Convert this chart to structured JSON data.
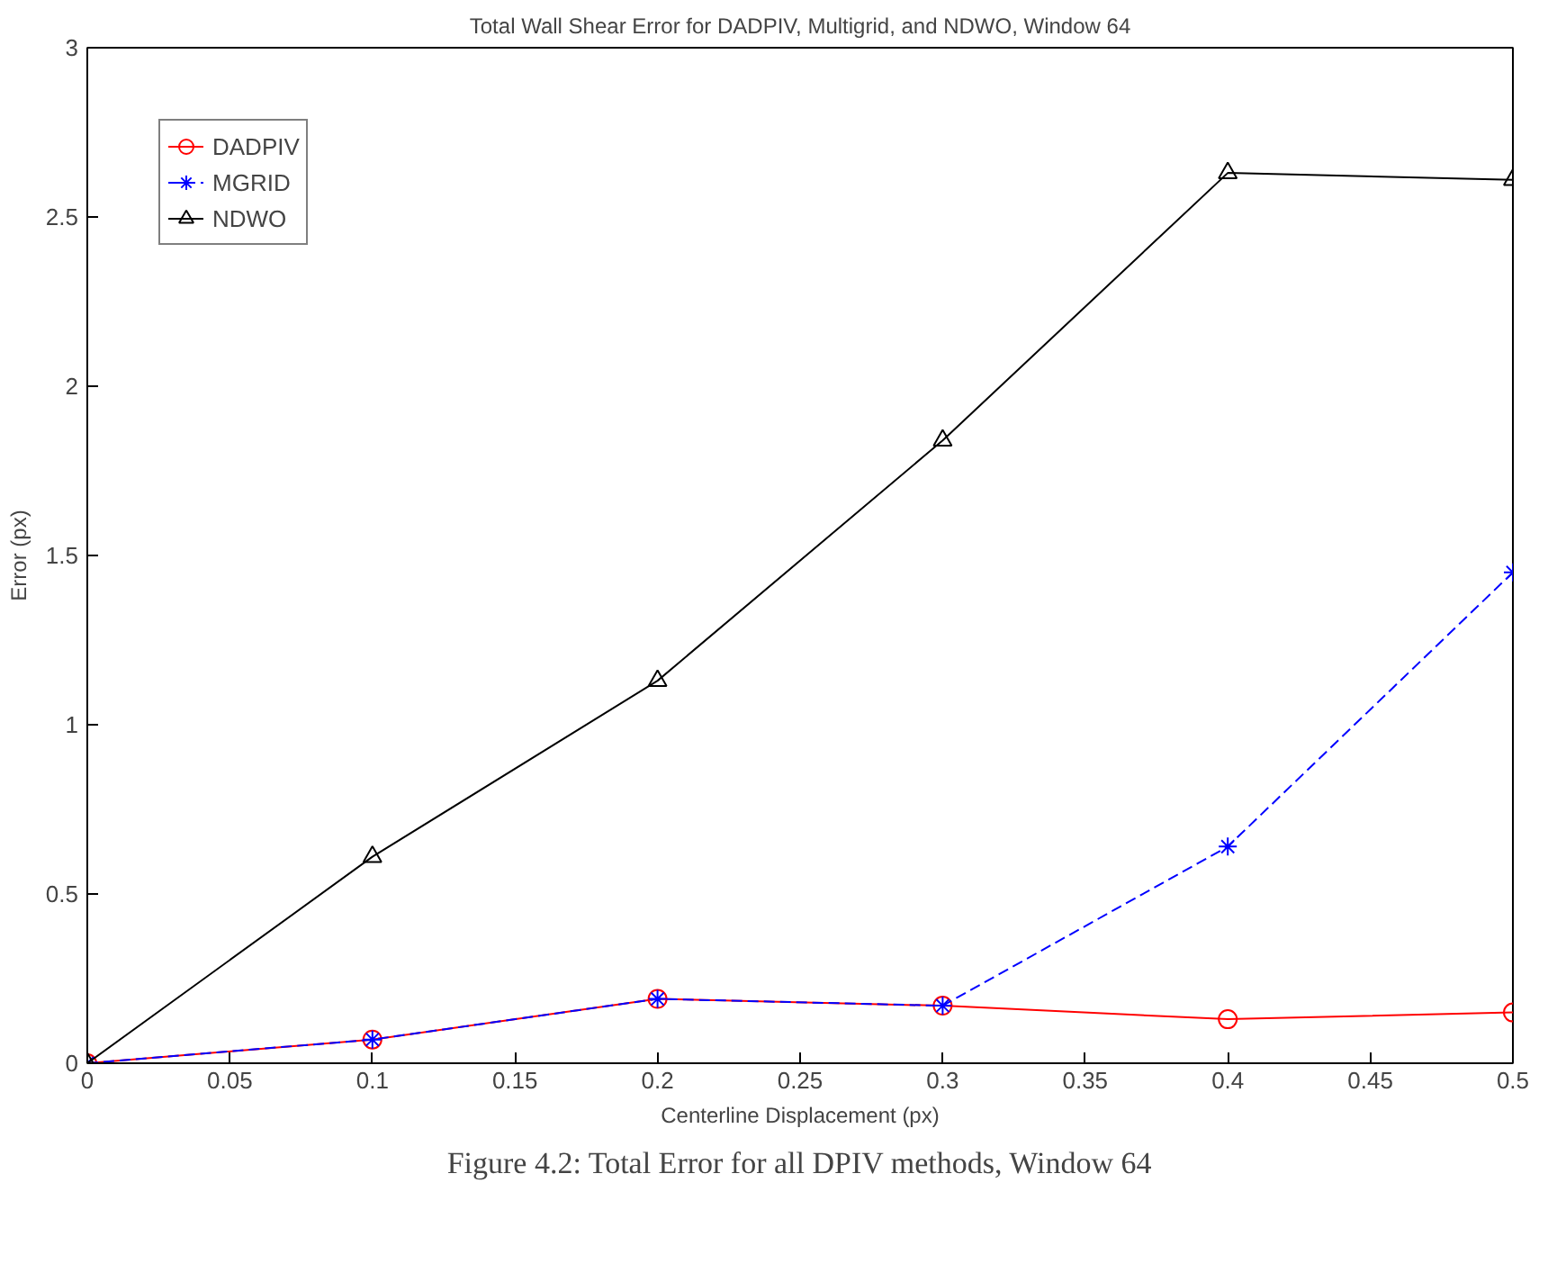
{
  "chart_data": {
    "type": "line",
    "title": "Total Wall Shear Error for DADPIV, Multigrid, and NDWO, Window 64",
    "xlabel": "Centerline Displacement (px)",
    "ylabel": "Error (px)",
    "x": [
      0,
      0.1,
      0.2,
      0.3,
      0.4,
      0.5
    ],
    "series": [
      {
        "name": "DADPIV",
        "color": "#ff0000",
        "marker": "circle",
        "line_style": "solid",
        "values": [
          0,
          0.07,
          0.19,
          0.17,
          0.13,
          0.15
        ]
      },
      {
        "name": "MGRID",
        "color": "#0000ff",
        "marker": "cross",
        "line_style": "dashed",
        "values": [
          0,
          0.07,
          0.19,
          0.17,
          0.64,
          1.45
        ]
      },
      {
        "name": "NDWO",
        "color": "#000000",
        "marker": "triangle",
        "line_style": "solid",
        "values": [
          0,
          0.61,
          1.13,
          1.84,
          2.63,
          2.61
        ]
      }
    ],
    "xlim": [
      0,
      0.5
    ],
    "ylim": [
      0,
      3
    ],
    "xticks": [
      0,
      0.05,
      0.1,
      0.15,
      0.2,
      0.25,
      0.3,
      0.35,
      0.4,
      0.45,
      0.5
    ],
    "yticks": [
      0,
      0.5,
      1,
      1.5,
      2,
      2.5,
      3
    ],
    "grid": false,
    "legend": "top left",
    "annotations": [
      "Figure 4.2: Total Error for all DPIV methods, Window 64"
    ]
  }
}
